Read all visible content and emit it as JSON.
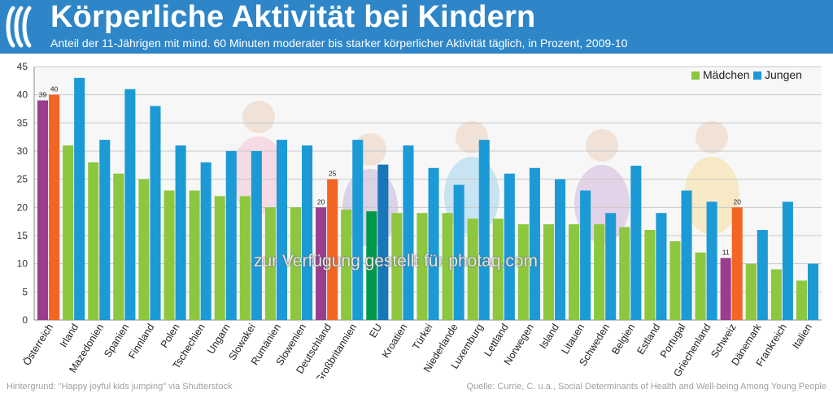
{
  "header": {
    "title": "Körperliche Aktivität bei Kindern",
    "subtitle": "Anteil der 11-Jährigen mit mind. 60 Minuten moderater bis starker körperlicher Aktivität täglich, in Prozent, 2009-10",
    "background": "#2e86c8"
  },
  "footer": {
    "background_credit": "Hintergrund: \"Happy joyful kids jumping\" via Shutterstock",
    "source": "Quelle: Currie, C. u.a., Social Determinants of Health and Well-being Among Young People"
  },
  "watermark": "zur Verfügung gestellt für photaq.com",
  "chart_data": {
    "type": "bar",
    "title": "",
    "xlabel": "",
    "ylabel": "",
    "ylim": [
      0,
      45
    ],
    "yticks": [
      0,
      5,
      10,
      15,
      20,
      25,
      30,
      35,
      40,
      45
    ],
    "grid": true,
    "legend_position": "top-right",
    "categories": [
      "Österreich",
      "Irland",
      "Mazedonien",
      "Spanien",
      "Finnland",
      "Polen",
      "Tschechien",
      "Ungarn",
      "Slowakei",
      "Rumänien",
      "Slowenien",
      "Deutschland",
      "Großbritannien",
      "EU",
      "Kroatien",
      "Türkei",
      "Niederlande",
      "Luxemburg",
      "Lettland",
      "Norwegen",
      "Island",
      "Litauen",
      "Schweden",
      "Belgien",
      "Estland",
      "Portugal",
      "Griechenland",
      "Schweiz",
      "Dänemark",
      "Frankreich",
      "Italien"
    ],
    "series": [
      {
        "name": "Mädchen",
        "color": "#8dc63f",
        "values": [
          39,
          31,
          28,
          26,
          25,
          23,
          23,
          22,
          22,
          20,
          20,
          20,
          19.6,
          19.3,
          19,
          19,
          19,
          18,
          18,
          17,
          17,
          17,
          17,
          16.5,
          16,
          14,
          12,
          11,
          10,
          9,
          7
        ]
      },
      {
        "name": "Jungen",
        "color": "#1c9ad6",
        "values": [
          40,
          43,
          32,
          41,
          38,
          31,
          28,
          30,
          30,
          32,
          31,
          25,
          32,
          27.6,
          31,
          27,
          24,
          32,
          26,
          27,
          25,
          23,
          19,
          27.4,
          19,
          23,
          21,
          20,
          16,
          21,
          10
        ]
      }
    ],
    "highlight_colors": {
      "Mädchen": "#9b3d8f",
      "Jungen": "#f26522",
      "EU_Mädchen": "#00994c",
      "EU_Jungen": "#1877b8"
    },
    "highlighted_categories": [
      "Österreich",
      "Deutschland",
      "Schweiz"
    ],
    "eu_category": "EU",
    "data_labels": [
      {
        "category": "Österreich",
        "Mädchen": "39",
        "Jungen": "40"
      },
      {
        "category": "Deutschland",
        "Mädchen": "20",
        "Jungen": "25"
      },
      {
        "category": "Schweiz",
        "Mädchen": "11",
        "Jungen": "20"
      }
    ]
  }
}
